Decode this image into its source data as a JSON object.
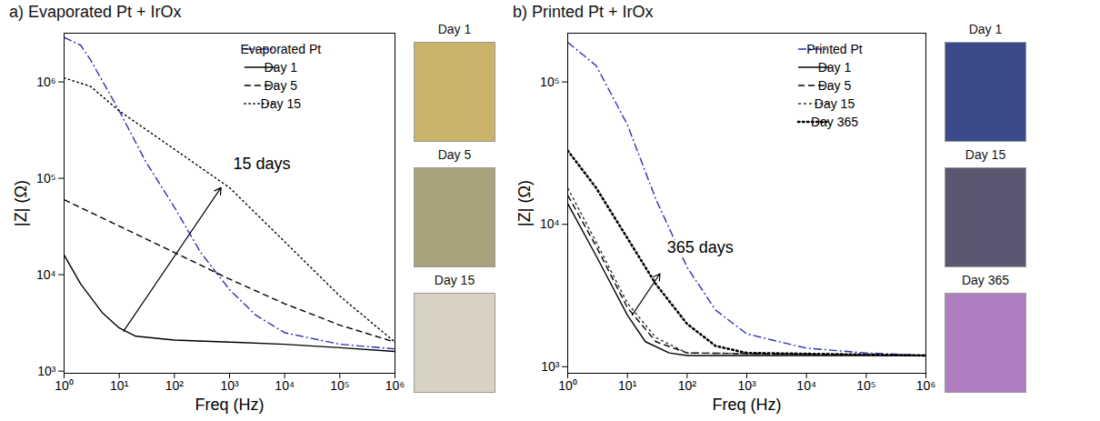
{
  "chart_data": [
    {
      "type": "line",
      "title": "a) Evaporated Pt + IrOx",
      "x_label": "Freq (Hz)",
      "y_label": "|Z| (Ω)",
      "log": true,
      "grid": false,
      "legend": "top-right",
      "xlim": [
        1,
        1000000
      ],
      "ylim": [
        950,
        3200000
      ],
      "xticks": [
        {
          "value": 1,
          "label": "10⁰"
        },
        {
          "value": 10,
          "label": "10¹"
        },
        {
          "value": 100,
          "label": "10²"
        },
        {
          "value": 1000,
          "label": "10³"
        },
        {
          "value": 10000,
          "label": "10⁴"
        },
        {
          "value": 100000,
          "label": "10⁵"
        },
        {
          "value": 1000000,
          "label": "10⁶"
        }
      ],
      "yticks": [
        {
          "value": 1000,
          "label": "10³"
        },
        {
          "value": 10000,
          "label": "10⁴"
        },
        {
          "value": 100000,
          "label": "10⁵"
        },
        {
          "value": 1000000,
          "label": "10⁶"
        }
      ],
      "series": [
        {
          "name": "Evaporated Pt",
          "color": "#2e2eb8",
          "line_style": "dashdot",
          "x": [
            1,
            2,
            3,
            10,
            30,
            100,
            300,
            1000,
            3000,
            10000,
            100000,
            1000000
          ],
          "values": [
            2900000,
            2400000,
            1700000,
            500000,
            150000,
            50000,
            17000,
            7000,
            3800,
            2500,
            1900,
            1700
          ]
        },
        {
          "name": "Day 1",
          "color": "#000000",
          "line_style": "solid",
          "x": [
            1,
            2,
            5,
            10,
            20,
            100,
            1000,
            10000,
            100000,
            1000000
          ],
          "values": [
            16000,
            8000,
            4000,
            2800,
            2300,
            2100,
            2000,
            1900,
            1750,
            1600
          ]
        },
        {
          "name": "Day 5",
          "color": "#000000",
          "line_style": "dashed",
          "x": [
            1,
            10,
            100,
            1000,
            10000,
            100000,
            1000000
          ],
          "values": [
            60000,
            32000,
            17000,
            9000,
            5000,
            3000,
            2000
          ]
        },
        {
          "name": "Day 15",
          "color": "#000000",
          "line_style": "dotted",
          "x": [
            1,
            3,
            10,
            100,
            1000,
            10000,
            100000,
            1000000
          ],
          "values": [
            1100000,
            900000,
            500000,
            200000,
            80000,
            22000,
            6000,
            2000
          ]
        }
      ],
      "annotations": [
        {
          "text": "15 days",
          "x": 1000,
          "y": 130000,
          "arrow_from": [
            12,
            2600
          ],
          "arrow_to": [
            700,
            80000
          ]
        }
      ],
      "photos": [
        "Day 1",
        "Day 5",
        "Day 15"
      ]
    },
    {
      "type": "line",
      "title": "b) Printed Pt + IrOx",
      "x_label": "Freq (Hz)",
      "y_label": "|Z| (Ω)",
      "log": true,
      "grid": false,
      "legend": "top-right",
      "xlim": [
        1,
        1000000
      ],
      "ylim": [
        900,
        220000
      ],
      "xticks": [
        {
          "value": 1,
          "label": "10⁰"
        },
        {
          "value": 10,
          "label": "10¹"
        },
        {
          "value": 100,
          "label": "10²"
        },
        {
          "value": 1000,
          "label": "10³"
        },
        {
          "value": 10000,
          "label": "10⁴"
        },
        {
          "value": 100000,
          "label": "10⁵"
        },
        {
          "value": 1000000,
          "label": "10⁶"
        }
      ],
      "yticks": [
        {
          "value": 1000,
          "label": "10³"
        },
        {
          "value": 10000,
          "label": "10⁴"
        },
        {
          "value": 100000,
          "label": "10⁵"
        }
      ],
      "series": [
        {
          "name": "Printed Pt",
          "color": "#2e2eb8",
          "line_style": "dashdot",
          "x": [
            1,
            3,
            10,
            30,
            100,
            300,
            1000,
            10000,
            100000,
            1000000
          ],
          "values": [
            190000,
            130000,
            50000,
            15000,
            5000,
            2500,
            1700,
            1350,
            1250,
            1200
          ]
        },
        {
          "name": "Day 1",
          "color": "#000000",
          "line_style": "solid",
          "x": [
            1,
            3,
            10,
            20,
            50,
            100,
            1000,
            1000000
          ],
          "values": [
            14000,
            6000,
            2300,
            1500,
            1250,
            1200,
            1200,
            1200
          ]
        },
        {
          "name": "Day 5",
          "color": "#000000",
          "line_style": "dashed",
          "x": [
            1,
            3,
            10,
            30,
            100,
            1000000
          ],
          "values": [
            16000,
            7000,
            2600,
            1500,
            1250,
            1200
          ]
        },
        {
          "name": "Day 15",
          "color": "#333333",
          "line_style": "short_dashed",
          "x": [
            1,
            3,
            10,
            30,
            100,
            1000000
          ],
          "values": [
            18000,
            7500,
            2800,
            1600,
            1250,
            1200
          ]
        },
        {
          "name": "Day 365",
          "color": "#000000",
          "line_style": "dotted",
          "x": [
            1,
            3,
            10,
            30,
            100,
            300,
            1000,
            1000000
          ],
          "values": [
            33000,
            18000,
            8000,
            3800,
            2000,
            1400,
            1250,
            1200
          ]
        }
      ],
      "annotations": [
        {
          "text": "365 days",
          "x": 40,
          "y": 6500,
          "arrow_from": [
            12,
            2300
          ],
          "arrow_to": [
            35,
            4500
          ]
        }
      ],
      "photos": [
        "Day 1",
        "Day 15",
        "Day 365"
      ]
    }
  ]
}
